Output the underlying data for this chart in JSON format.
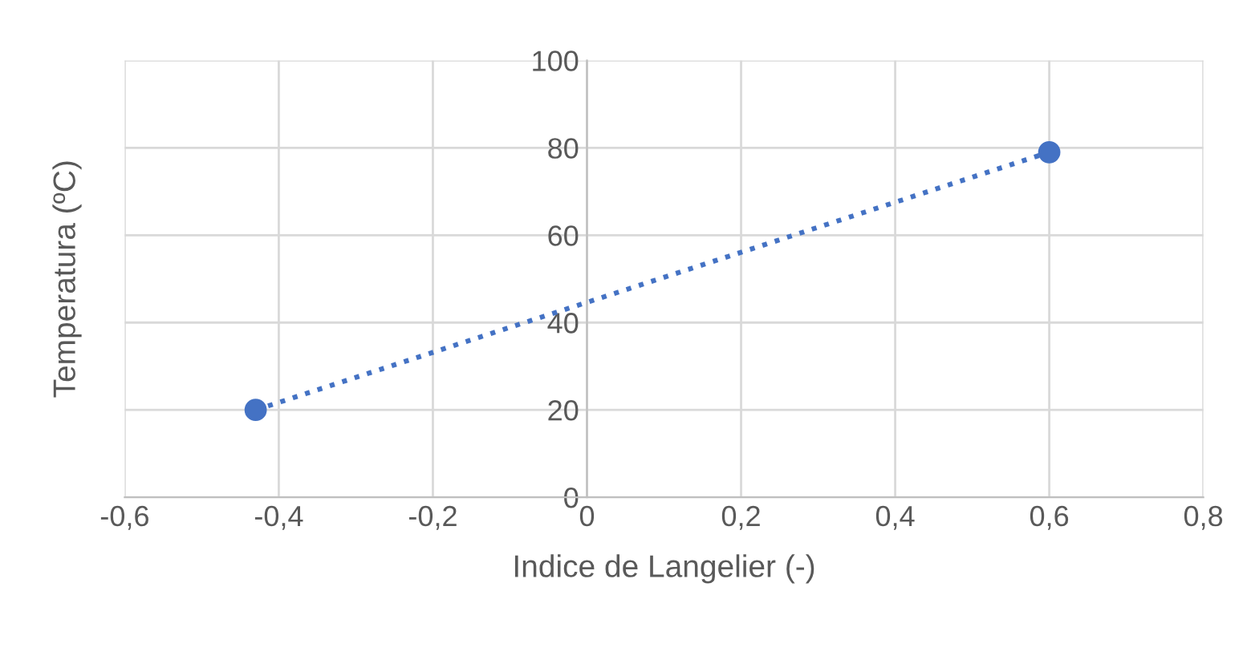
{
  "chart_data": {
    "type": "line",
    "xlabel": "Indice de Langelier (-)",
    "ylabel": "Temperatura (ºC)",
    "x": [
      -0.43,
      0.6
    ],
    "series": [
      {
        "color": "#4472c4",
        "values": [
          20,
          79
        ]
      }
    ],
    "marker": "circle",
    "line_style": "dotted",
    "xlim": [
      -0.6,
      0.8
    ],
    "xticks": [
      {
        "value": -0.6,
        "label": "-0,6"
      },
      {
        "value": -0.4,
        "label": "-0,4"
      },
      {
        "value": -0.2,
        "label": "-0,2"
      },
      {
        "value": 0,
        "label": "0"
      },
      {
        "value": 0.2,
        "label": "0,2"
      },
      {
        "value": 0.4,
        "label": "0,4"
      },
      {
        "value": 0.6,
        "label": "0,6"
      },
      {
        "value": 0.8,
        "label": "0,8"
      }
    ],
    "ylim": [
      0,
      100
    ],
    "yticks": [
      0,
      20,
      40,
      60,
      80,
      100
    ],
    "grid": true
  }
}
